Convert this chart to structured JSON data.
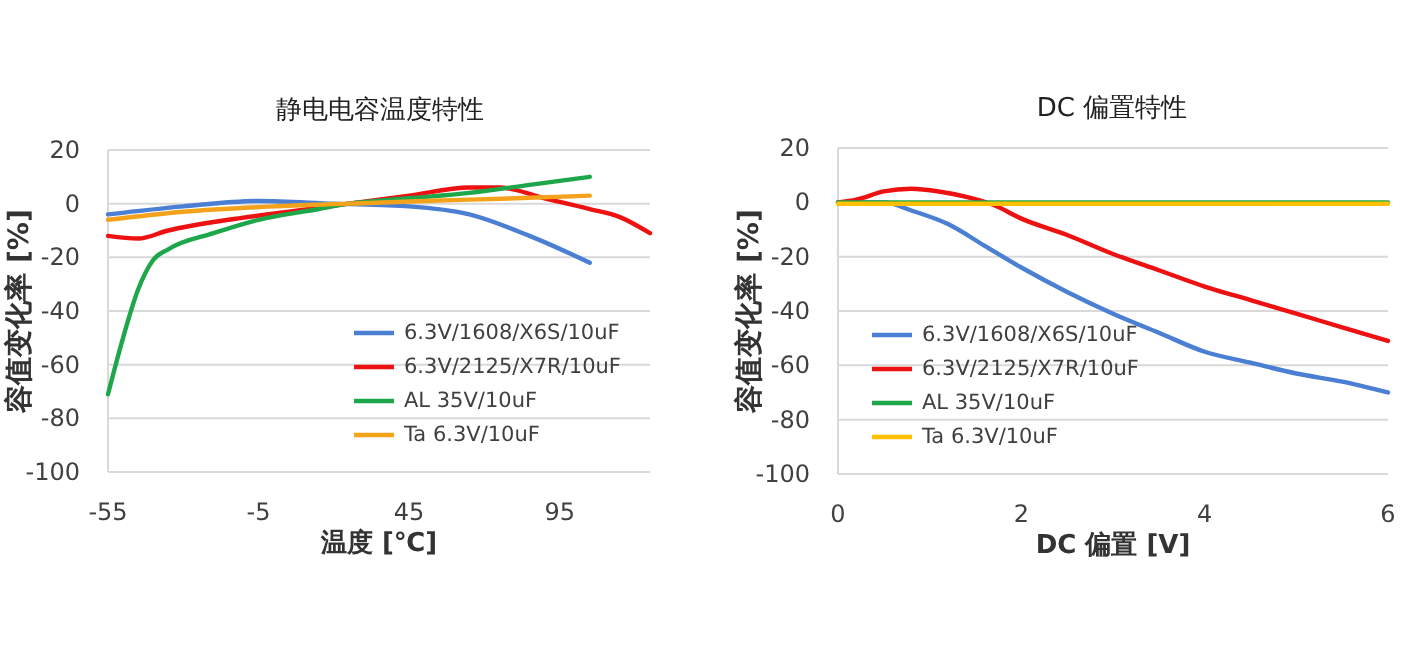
{
  "chart_data": [
    {
      "type": "line",
      "title": "静电电容温度特性",
      "xlabel": "温度 [℃]",
      "ylabel": "容值变化率 [%]",
      "xlim": [
        -55,
        125
      ],
      "xticks": [
        -55,
        -5,
        45,
        95
      ],
      "ylim": [
        -100,
        20
      ],
      "yticks": [
        -100,
        -80,
        -60,
        -40,
        -20,
        0,
        20
      ],
      "grid": "y",
      "legend": "bottom right",
      "series": [
        {
          "name": "6.3V/1608/X6S/10uF",
          "color": "#4a7fd4",
          "x": [
            -55,
            -30,
            -5,
            20,
            45,
            65,
            85,
            105
          ],
          "values": [
            -4,
            -1,
            1,
            0,
            -1,
            -4,
            -12,
            -22
          ]
        },
        {
          "name": "6.3V/2125/X7R/10uF",
          "color": "#ee1111",
          "x": [
            -55,
            -45,
            -35,
            -15,
            5,
            25,
            45,
            65,
            75,
            90,
            105,
            115,
            125
          ],
          "values": [
            -12,
            -13,
            -10,
            -6,
            -3,
            0,
            3,
            6,
            6,
            2,
            -2,
            -5,
            -11
          ]
        },
        {
          "name": "AL 35V/10uF",
          "color": "#1ea64a",
          "x": [
            -55,
            -50,
            -45,
            -40,
            -35,
            -20,
            -5,
            15,
            25,
            45,
            65,
            85,
            105
          ],
          "values": [
            -71,
            -50,
            -32,
            -21,
            -17,
            -11,
            -6,
            -2,
            0,
            2,
            4,
            7,
            10
          ]
        },
        {
          "name": "Ta 6.3V/10uF",
          "color": "#f5a21b",
          "x": [
            -55,
            -30,
            0,
            25,
            50,
            80,
            105
          ],
          "values": [
            -6,
            -3,
            -1,
            0,
            1,
            2,
            3
          ]
        }
      ]
    },
    {
      "type": "line",
      "title": "DC 偏置特性",
      "xlabel": "DC 偏置 [V]",
      "ylabel": "容值变化率 [%]",
      "xlim": [
        0,
        6
      ],
      "xticks": [
        0,
        2,
        4,
        6
      ],
      "ylim": [
        -100,
        20
      ],
      "yticks": [
        -100,
        -80,
        -60,
        -40,
        -20,
        0,
        20
      ],
      "grid": "y",
      "legend": "bottom left",
      "series": [
        {
          "name": "6.3V/1608/X6S/10uF",
          "color": "#4a7fd4",
          "x": [
            0,
            0.5,
            0.8,
            1.2,
            1.6,
            2,
            2.5,
            3,
            3.5,
            4,
            4.5,
            5,
            5.5,
            6
          ],
          "values": [
            0,
            0,
            -3,
            -8,
            -16,
            -24,
            -33,
            -41,
            -48,
            -55,
            -59,
            -63,
            -66,
            -70
          ]
        },
        {
          "name": "6.3V/2125/X7R/10uF",
          "color": "#ee1111",
          "x": [
            0,
            0.2,
            0.5,
            0.8,
            1.1,
            1.4,
            1.7,
            2,
            2.5,
            3,
            3.5,
            4,
            4.5,
            5,
            5.5,
            6
          ],
          "values": [
            0,
            1,
            4,
            5,
            4,
            2,
            -1,
            -6,
            -12,
            -19,
            -25,
            -31,
            -36,
            -41,
            -46,
            -51
          ]
        },
        {
          "name": "AL 35V/10uF",
          "color": "#1ea64a",
          "x": [
            0,
            6
          ],
          "values": [
            0,
            0
          ]
        },
        {
          "name": "Ta 6.3V/10uF",
          "color": "#ffc000",
          "x": [
            0,
            6
          ],
          "values": [
            -0.5,
            -0.5
          ]
        }
      ]
    }
  ]
}
